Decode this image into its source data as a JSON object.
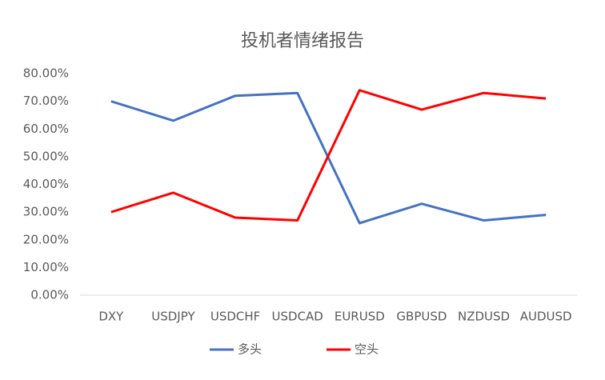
{
  "chart_data": {
    "type": "line",
    "title": "投机者情绪报告",
    "categories": [
      "DXY",
      "USDJPY",
      "USDCHF",
      "USDCAD",
      "EURUSD",
      "GBPUSD",
      "NZDUSD",
      "AUDUSD"
    ],
    "series": [
      {
        "name": "多头",
        "color": "#4472c4",
        "values": [
          70,
          63,
          72,
          73,
          26,
          33,
          27,
          29
        ]
      },
      {
        "name": "空头",
        "color": "#ff0000",
        "values": [
          30,
          37,
          28,
          27,
          74,
          67,
          73,
          71
        ]
      }
    ],
    "ylim": [
      0,
      80
    ],
    "yticks": [
      {
        "value": 0,
        "label": "0.00%"
      },
      {
        "value": 10,
        "label": "10.00%"
      },
      {
        "value": 20,
        "label": "20.00%"
      },
      {
        "value": 30,
        "label": "30.00%"
      },
      {
        "value": 40,
        "label": "40.00%"
      },
      {
        "value": 50,
        "label": "50.00%"
      },
      {
        "value": 60,
        "label": "60.00%"
      },
      {
        "value": 70,
        "label": "70.00%"
      },
      {
        "value": 80,
        "label": "80.00%"
      }
    ],
    "grid": false,
    "legend": "bottom"
  }
}
